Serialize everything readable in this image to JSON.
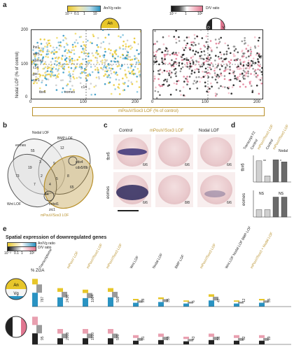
{
  "panels": {
    "a": "a",
    "b": "b",
    "c": "c",
    "d": "d",
    "e": "e"
  },
  "a": {
    "legend_left": {
      "ticks": [
        "10⁻²",
        "0.1",
        "1",
        "10"
      ],
      "label": "An/Vg ratio"
    },
    "legend_right": {
      "ticks": [
        "10⁻²",
        "1",
        "10²"
      ],
      "label": "D/V ratio"
    },
    "ylabel": "Nodal LOF (% of control)",
    "yticks": [
      "200",
      "100",
      "0"
    ],
    "xticks": [
      "0",
      "100",
      "200"
    ],
    "xlabel": "mPouV/Sox3 LOF (% of control)",
    "gene_labels_left": [
      "lhx1",
      "xnr5",
      "eomes",
      "c14",
      "gsc",
      "cer1",
      "fgf8",
      "bix1",
      "t",
      "nodal3"
    ],
    "gene_labels_bottom": [
      "tbx6",
      "eomes",
      "c14"
    ],
    "embryo_an": "An",
    "embryo_vg": "Vg",
    "embryo_d": "D",
    "embryo_v": "V"
  },
  "b": {
    "sets": [
      "Nodal LOF",
      "BMP LOF",
      "Wnt LOF",
      "mPouV/Sox3 LOF"
    ],
    "counts": [
      "55",
      "12",
      "73",
      "3",
      "9",
      "2",
      "5",
      "7",
      "4",
      "1",
      "8",
      "19",
      "3",
      "2",
      "1",
      "44",
      "1",
      "65"
    ],
    "notes": [
      "eomes",
      "c14",
      "cdx4",
      "cdx5/8b",
      "tmbd1",
      "zic1"
    ]
  },
  "c": {
    "columns": [
      "Control",
      "mPouV/Sox3 LOF",
      "Nodal LOF"
    ],
    "rows": [
      "tbx6",
      "eomes"
    ],
    "fractions": [
      [
        "6/6",
        "6/6",
        "6/6"
      ],
      [
        "6/6",
        "8/8",
        "6/6"
      ]
    ]
  },
  "d": {
    "header": "Transcript F2",
    "columns": [
      "Control",
      "mPouV/Sox3 LOF",
      "Control",
      "mPouV/Sox3 LOF"
    ],
    "legend": "Nodal",
    "rows": [
      "tbx6",
      "eomes"
    ],
    "sig": [
      "**",
      "*",
      "NS",
      "NS"
    ],
    "yticks_top": [
      "4",
      "2",
      "0"
    ],
    "yticks_bottom": [
      "1",
      "0"
    ]
  },
  "e": {
    "title": "Spatial expression of downregulated genes",
    "legend": {
      "line1": "An/Vg ratio",
      "line2": "D/V ratio",
      "ticks": [
        "10⁻²",
        "0.1",
        "1",
        "10²"
      ]
    },
    "ylabel": "% ZGA",
    "groups": [
      "Transcriptome",
      "mPouV LOF",
      "mPouV/Sox3 LOF",
      "mPouV/Sox3 LOF",
      "Wnt LOF",
      "Nodal LOF",
      "BMP LOF",
      "mPouV/Sox3 LOF",
      "Wnt LOF Nodal LOF BMP LOF",
      "mPouV/Sox3 + Nodal LOF"
    ],
    "top_numbers": [
      "787",
      "2436",
      "1064",
      "505",
      "28",
      "35",
      "6",
      "47",
      "12",
      "35",
      "28",
      "38",
      "44",
      "82",
      "348"
    ],
    "bottom_numbers": [
      "95",
      "2008",
      "1010",
      "505",
      "31",
      "59",
      "43",
      "56",
      "52",
      "19",
      "146",
      "241"
    ]
  },
  "chart_data": {
    "type": "bar",
    "title": "Spatial expression of downregulated genes",
    "ylabel": "% ZGA",
    "categories": [
      "Transcriptome",
      "mPouV LOF",
      "mPouV/Sox3 LOF",
      "mPouV/Sox3 LOF",
      "Wnt LOF",
      "Nodal LOF",
      "BMP LOF",
      "mPouV/Sox3 LOF",
      "Wnt/Nodal/BMP LOF",
      "mPouV/Sox3 + Nodal LOF"
    ],
    "series": [
      {
        "name": "An/Vg ratio",
        "values": [
          90,
          60,
          55,
          60,
          25,
          30,
          20,
          40,
          20,
          25
        ]
      },
      {
        "name": "D/V ratio",
        "values": [
          90,
          50,
          50,
          50,
          30,
          35,
          25,
          35,
          30,
          30
        ]
      }
    ],
    "ylim": [
      0,
      100
    ],
    "colors": {
      "animal": "#e7c62a",
      "vegetal": "#2a93c2",
      "dorsal": "#222222",
      "ventral": "#e9a0b0",
      "neutral": "#9a9a9a"
    }
  }
}
